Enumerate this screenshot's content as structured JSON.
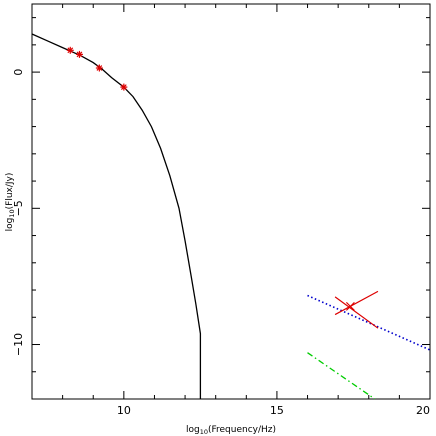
{
  "chart_data": {
    "type": "line",
    "title": "",
    "xlabel": {
      "prefix": "log",
      "sub": "10",
      "suffix": "(Frequency/Hz)"
    },
    "ylabel": {
      "prefix": "log",
      "sub": "10",
      "suffix": "(Flux/Jy)"
    },
    "xlim": [
      7,
      20
    ],
    "ylim": [
      -12,
      2.5
    ],
    "x_ticks": [
      10,
      15,
      20
    ],
    "y_ticks": [
      0,
      -5,
      -10
    ],
    "grid": false,
    "legend": "none",
    "series": [
      {
        "style": "solid",
        "color": "#000000",
        "x": [
          7.0,
          7.5,
          8.0,
          8.3,
          8.6,
          9.0,
          9.3,
          9.6,
          10.0,
          10.3,
          10.6,
          10.9,
          11.2,
          11.5,
          11.8,
          12.0,
          12.2,
          12.35,
          12.5,
          12.5
        ],
        "y": [
          1.4,
          1.15,
          0.9,
          0.75,
          0.6,
          0.35,
          0.1,
          -0.2,
          -0.55,
          -0.9,
          -1.4,
          -2.0,
          -2.8,
          -3.8,
          -5.0,
          -6.2,
          -7.5,
          -8.5,
          -9.6,
          -12.0
        ]
      },
      {
        "style": "dotted",
        "color": "#0000cc",
        "x": [
          16.0,
          20.0
        ],
        "y": [
          -8.2,
          -10.2
        ]
      },
      {
        "style": "dashdot",
        "color": "#00cc00",
        "x": [
          16.0,
          18.2
        ],
        "y": [
          -10.3,
          -12.0
        ]
      }
    ],
    "points": {
      "color": "#dd0000",
      "marker": "star",
      "x": [
        8.25,
        8.55,
        9.2,
        10.0
      ],
      "y": [
        0.8,
        0.65,
        0.15,
        -0.55
      ]
    },
    "bowtie": {
      "color": "#dd0000",
      "x": [
        16.9,
        18.3
      ],
      "y_upper": [
        -8.9,
        -8.05
      ],
      "y_lower": [
        -8.25,
        -9.4
      ],
      "center": [
        17.4,
        -8.6
      ]
    }
  }
}
